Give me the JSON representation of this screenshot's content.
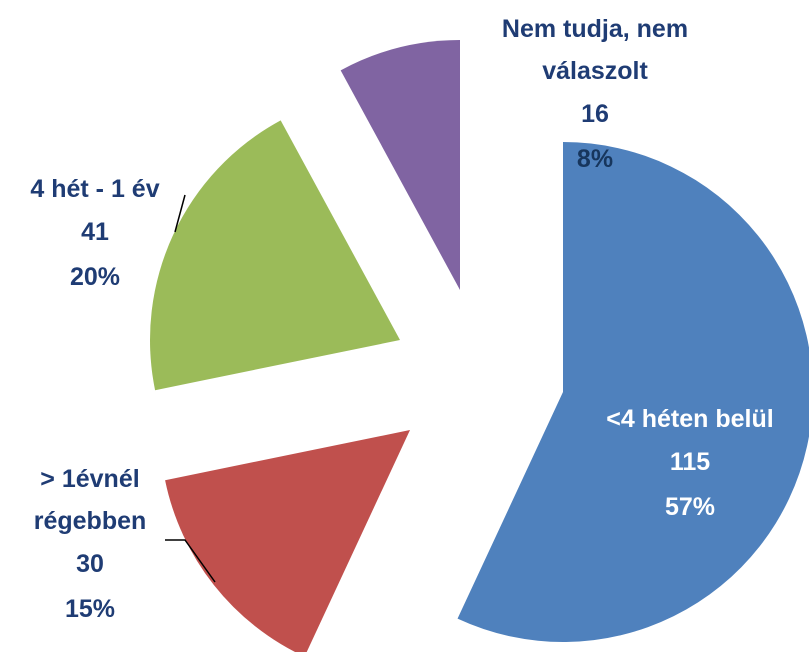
{
  "chart_data": {
    "type": "pie",
    "categories": [
      "<4 héten belül",
      "> 1évnél régebben",
      "4 hét - 1 év",
      "Nem tudja, nem válaszolt"
    ],
    "values": [
      115,
      30,
      41,
      16
    ],
    "percent_labels": [
      "57%",
      "15%",
      "20%",
      "8%"
    ],
    "colors": [
      "#4f81bd",
      "#c0504d",
      "#9bbb59",
      "#8064a2"
    ]
  }
}
